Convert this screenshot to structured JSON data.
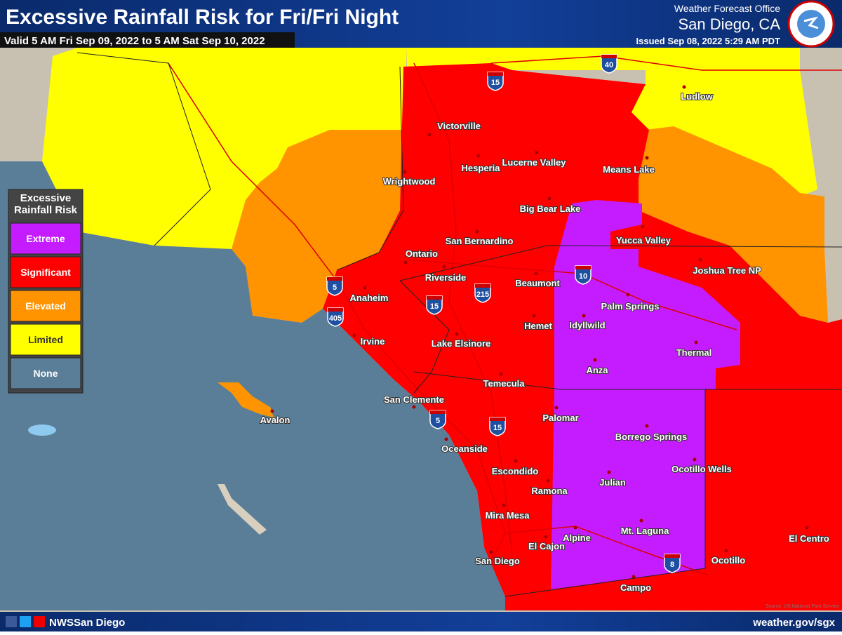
{
  "header": {
    "title": "Excessive Rainfall Risk for Fri/Fri Night",
    "valid": "Valid 5 AM Fri Sep 09, 2022 to 5 AM Sat Sep 10, 2022",
    "office": "Weather Forecast Office",
    "location": "San Diego, CA",
    "issued": "Issued Sep 08, 2022 5:29 AM PDT"
  },
  "legend": {
    "title": "Excessive Rainfall Risk",
    "items": [
      {
        "label": "Extreme",
        "color": "#c41cff"
      },
      {
        "label": "Significant",
        "color": "#ff0000"
      },
      {
        "label": "Elevated",
        "color": "#ff9400"
      },
      {
        "label": "Limited",
        "color": "#ffff00"
      },
      {
        "label": "None",
        "color": "#5b7e98"
      }
    ]
  },
  "cities": [
    "Victorville",
    "Hesperia",
    "Lucerne Valley",
    "Means Lake",
    "Wrightwood",
    "Big Bear Lake",
    "Ludlow",
    "San Bernardino",
    "Yucca Valley",
    "Ontario",
    "Joshua Tree NP",
    "Riverside",
    "Beaumont",
    "Anaheim",
    "Palm Springs",
    "Idyllwild",
    "Hemet",
    "Irvine",
    "Lake Elsinore",
    "Thermal",
    "Anza",
    "Temecula",
    "San Clemente",
    "Avalon",
    "Palomar",
    "Borrego Springs",
    "Oceanside",
    "Ocotillo Wells",
    "Escondido",
    "Julian",
    "Ramona",
    "Mira Mesa",
    "Mt. Laguna",
    "Alpine",
    "El Cajon",
    "El Centro",
    "San Diego",
    "Ocotillo",
    "Campo"
  ],
  "interstates": [
    "15",
    "40",
    "5",
    "405",
    "15",
    "215",
    "10",
    "5",
    "15",
    "8"
  ],
  "footer": {
    "social": "NWSSan Diego",
    "website": "weather.gov/sgx",
    "credit": "Source: US National Park Service"
  }
}
